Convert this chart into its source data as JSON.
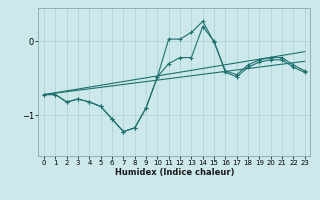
{
  "xlabel": "Humidex (Indice chaleur)",
  "xlim": [
    -0.5,
    23.5
  ],
  "ylim": [
    -1.55,
    0.45
  ],
  "yticks": [
    0,
    -1
  ],
  "xticks": [
    0,
    1,
    2,
    3,
    4,
    5,
    6,
    7,
    8,
    9,
    10,
    11,
    12,
    13,
    14,
    15,
    16,
    17,
    18,
    19,
    20,
    21,
    22,
    23
  ],
  "bg_color": "#cce8eb",
  "line_color": "#1d706e",
  "grid_color": "#b0d4d8",
  "series_curve1": {
    "x": [
      0,
      1,
      2,
      3,
      4,
      5,
      6,
      7,
      8,
      9,
      10,
      11,
      12,
      13,
      14,
      15,
      16,
      17,
      18,
      19,
      20,
      21,
      22,
      23
    ],
    "y": [
      -0.72,
      -0.72,
      -0.82,
      -0.78,
      -0.82,
      -0.88,
      -1.05,
      -1.22,
      -1.17,
      -0.9,
      -0.48,
      -0.3,
      -0.22,
      -0.22,
      0.2,
      0.0,
      -0.42,
      -0.48,
      -0.35,
      -0.28,
      -0.25,
      -0.25,
      -0.35,
      -0.42
    ]
  },
  "series_curve2": {
    "x": [
      0,
      1,
      2,
      3,
      4,
      5,
      6,
      7,
      8,
      9,
      10,
      11,
      12,
      13,
      14,
      15,
      16,
      17,
      18,
      19,
      20,
      21,
      22,
      23
    ],
    "y": [
      -0.72,
      -0.72,
      -0.82,
      -0.78,
      -0.82,
      -0.88,
      -1.05,
      -1.22,
      -1.17,
      -0.9,
      -0.48,
      0.03,
      0.03,
      0.12,
      0.27,
      -0.01,
      -0.4,
      -0.45,
      -0.32,
      -0.25,
      -0.22,
      -0.22,
      -0.32,
      -0.4
    ]
  },
  "series_trend1": {
    "x": [
      0,
      23
    ],
    "y": [
      -0.72,
      -0.27
    ]
  },
  "series_trend2": {
    "x": [
      0,
      23
    ],
    "y": [
      -0.72,
      -0.14
    ]
  }
}
